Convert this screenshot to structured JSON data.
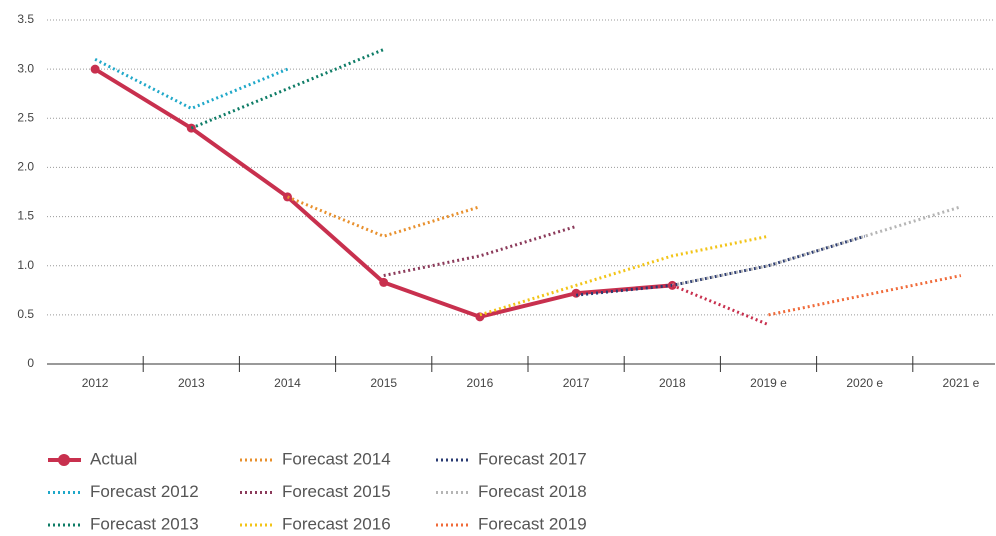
{
  "chart_data": {
    "type": "line",
    "categories": [
      "2012",
      "2013",
      "2014",
      "2015",
      "2016",
      "2017",
      "2018",
      "2019 e",
      "2020 e",
      "2021 e"
    ],
    "ylim": [
      0,
      3.5
    ],
    "yticks": [
      0,
      {
        "value": 0.5,
        "label": "0.5"
      },
      {
        "value": 1,
        "label": "1.0"
      },
      {
        "value": 1.5,
        "label": "1.5"
      },
      {
        "value": 2,
        "label": "2.0"
      },
      {
        "value": 2.5,
        "label": "2.5"
      },
      {
        "value": 3,
        "label": "3.0"
      },
      {
        "value": 3.5,
        "label": "3.5"
      }
    ],
    "grid": true,
    "series": [
      {
        "name": "Actual",
        "color": "#c8304e",
        "style": "solid",
        "values": [
          3.0,
          2.4,
          1.7,
          0.83,
          0.48,
          0.72,
          0.8,
          null,
          null,
          null
        ]
      },
      {
        "name": "Forecast 2012",
        "color": "#1fa8c9",
        "style": "dotted",
        "values": [
          3.1,
          2.6,
          3.0,
          null,
          null,
          null,
          null,
          null,
          null,
          null
        ]
      },
      {
        "name": "Forecast 2013",
        "color": "#0e7c66",
        "style": "dotted",
        "values": [
          null,
          2.4,
          2.8,
          3.2,
          null,
          null,
          null,
          null,
          null,
          null
        ]
      },
      {
        "name": "Forecast 2014",
        "color": "#e8902d",
        "style": "dotted",
        "values": [
          null,
          null,
          1.7,
          1.3,
          1.6,
          null,
          null,
          null,
          null,
          null
        ]
      },
      {
        "name": "Forecast 2015",
        "color": "#8b3a5a",
        "style": "dotted",
        "values": [
          null,
          null,
          null,
          0.9,
          1.1,
          1.4,
          null,
          null,
          null,
          null
        ]
      },
      {
        "name": "Forecast 2016",
        "color": "#f2c418",
        "style": "dotted",
        "values": [
          null,
          null,
          null,
          null,
          0.5,
          0.8,
          1.1,
          1.3,
          null,
          null
        ]
      },
      {
        "name": "Forecast 2017",
        "color": "#2a3b72",
        "style": "dotted",
        "values": [
          null,
          null,
          null,
          null,
          null,
          0.7,
          0.8,
          1.0,
          1.3,
          null
        ]
      },
      {
        "name": "Forecast 2018",
        "color": "#b5b5b5",
        "style": "dotted",
        "values": [
          null,
          null,
          null,
          null,
          null,
          null,
          0.8,
          1.0,
          1.3,
          1.6
        ]
      },
      {
        "name": "Forecast 2019",
        "color": "#f06b3a",
        "style": "dotted",
        "values": [
          null,
          null,
          null,
          null,
          null,
          null,
          null,
          0.5,
          0.7,
          0.9
        ]
      },
      {
        "color": "#c8304e",
        "style": "dotted",
        "values": [
          null,
          null,
          null,
          null,
          null,
          null,
          0.8,
          0.4,
          null,
          null
        ]
      }
    ]
  }
}
